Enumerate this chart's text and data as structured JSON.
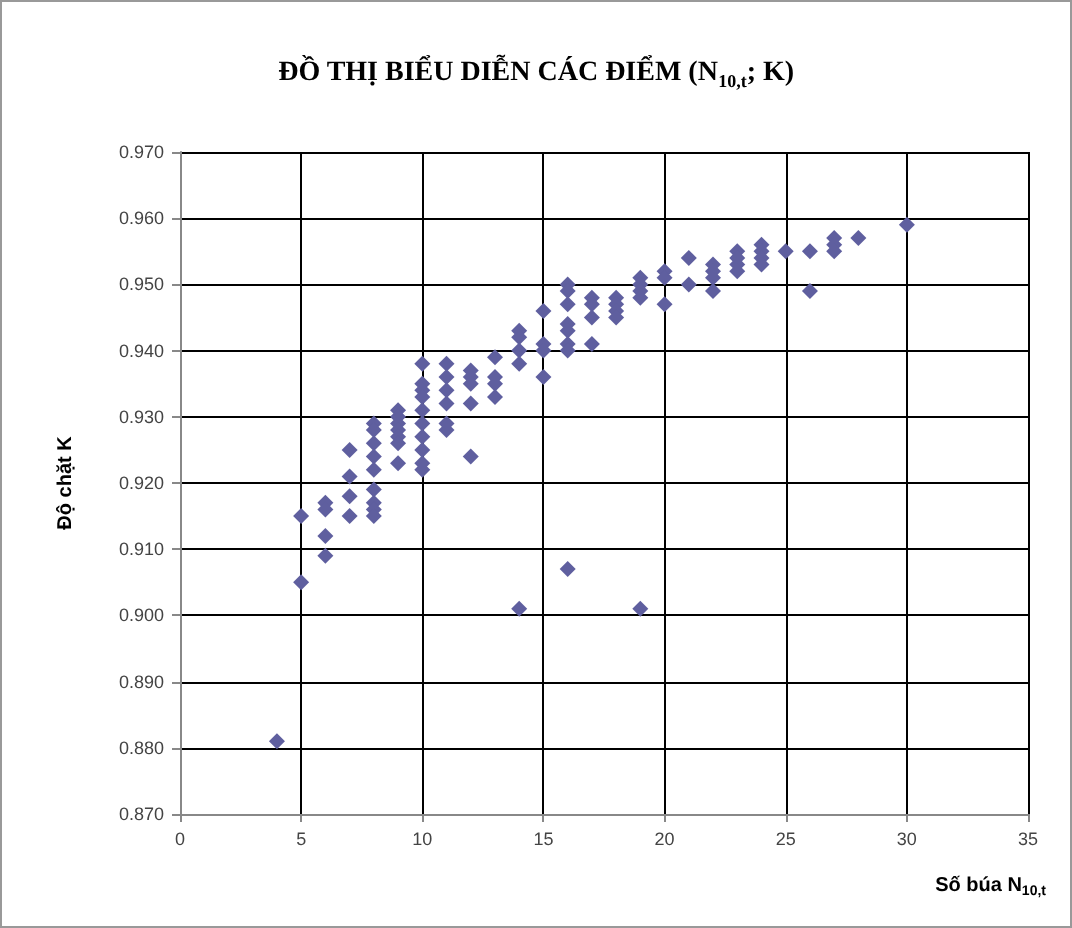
{
  "chart_data": {
    "type": "scatter",
    "title": "ĐỒ THỊ BIỂU DIỄN CÁC ĐIỂM (N$_{10,t}$; K)",
    "xlabel": "Số búa N$_{10,t}$",
    "ylabel": "Độ chặt K",
    "x": [
      4,
      5,
      5,
      6,
      6,
      6,
      6,
      7,
      7,
      7,
      7,
      8,
      8,
      8,
      8,
      8,
      8,
      8,
      8,
      8,
      9,
      9,
      9,
      9,
      9,
      9,
      9,
      10,
      10,
      10,
      10,
      10,
      10,
      10,
      10,
      10,
      10,
      11,
      11,
      11,
      11,
      11,
      11,
      12,
      12,
      12,
      12,
      12,
      13,
      13,
      13,
      13,
      14,
      14,
      14,
      14,
      14,
      15,
      15,
      15,
      15,
      16,
      16,
      16,
      16,
      16,
      16,
      16,
      16,
      17,
      17,
      17,
      17,
      18,
      18,
      18,
      18,
      19,
      19,
      19,
      19,
      19,
      20,
      20,
      20,
      21,
      21,
      22,
      22,
      22,
      22,
      23,
      23,
      23,
      23,
      24,
      24,
      24,
      24,
      25,
      26,
      26,
      27,
      27,
      27,
      28,
      30
    ],
    "series": [
      {
        "color": "#5f5f9f",
        "values": [
          0.881,
          0.915,
          0.905,
          0.917,
          0.916,
          0.912,
          0.909,
          0.925,
          0.921,
          0.918,
          0.915,
          0.929,
          0.928,
          0.926,
          0.924,
          0.922,
          0.919,
          0.917,
          0.916,
          0.915,
          0.931,
          0.93,
          0.929,
          0.928,
          0.927,
          0.926,
          0.923,
          0.938,
          0.935,
          0.934,
          0.933,
          0.931,
          0.929,
          0.927,
          0.925,
          0.923,
          0.922,
          0.938,
          0.936,
          0.934,
          0.932,
          0.929,
          0.928,
          0.937,
          0.936,
          0.935,
          0.932,
          0.924,
          0.939,
          0.936,
          0.935,
          0.933,
          0.943,
          0.942,
          0.94,
          0.938,
          0.901,
          0.946,
          0.941,
          0.94,
          0.936,
          0.95,
          0.949,
          0.947,
          0.944,
          0.943,
          0.941,
          0.94,
          0.907,
          0.948,
          0.947,
          0.945,
          0.941,
          0.948,
          0.947,
          0.946,
          0.945,
          0.951,
          0.95,
          0.949,
          0.948,
          0.901,
          0.952,
          0.951,
          0.947,
          0.954,
          0.95,
          0.953,
          0.952,
          0.951,
          0.949,
          0.955,
          0.954,
          0.953,
          0.952,
          0.956,
          0.955,
          0.954,
          0.953,
          0.955,
          0.955,
          0.949,
          0.957,
          0.956,
          0.955,
          0.957,
          0.959
        ]
      }
    ],
    "xlim": [
      0,
      35
    ],
    "xticks": [
      0,
      5,
      10,
      15,
      20,
      25,
      30,
      35
    ],
    "ylim": [
      0.87,
      0.97
    ],
    "yticks": [
      {
        "value": 0.87,
        "label": "0.870"
      },
      {
        "value": 0.88,
        "label": "0.880"
      },
      {
        "value": 0.89,
        "label": "0.890"
      },
      {
        "value": 0.9,
        "label": "0.900"
      },
      {
        "value": 0.91,
        "label": "0.910"
      },
      {
        "value": 0.92,
        "label": "0.920"
      },
      {
        "value": 0.93,
        "label": "0.930"
      },
      {
        "value": 0.94,
        "label": "0.940"
      },
      {
        "value": 0.95,
        "label": "0.950"
      },
      {
        "value": 0.96,
        "label": "0.960"
      },
      {
        "value": 0.97,
        "label": "0.970"
      }
    ],
    "grid": true,
    "marker": "diamond"
  }
}
